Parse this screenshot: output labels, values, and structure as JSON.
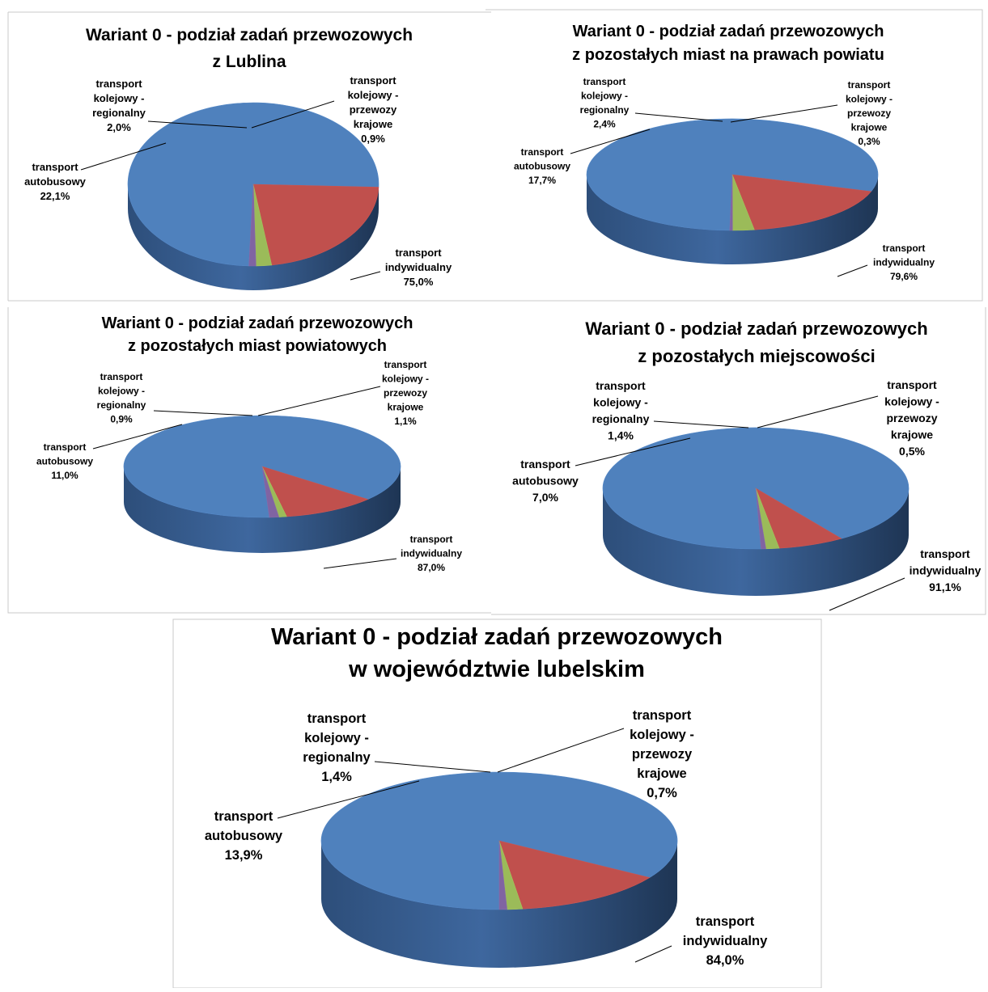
{
  "colors": {
    "transport_indywidualny": "#4f81bd",
    "transport_autobusowy": "#c0504d",
    "transport_kolejowy_regionalny": "#9bbb59",
    "transport_kolejowy_krajowe": "#8064a2"
  },
  "chart_data": [
    {
      "type": "pie",
      "style": "3d",
      "title_lines": [
        "Wariant 0 - podział zadań przewozowych",
        "z Lublina"
      ],
      "slices": [
        {
          "key": "indywidualny",
          "label_lines": [
            "transport",
            "indywidualny"
          ],
          "percent_label": "75,0%",
          "value": 75.0,
          "color": "#4f81bd"
        },
        {
          "key": "autobusowy",
          "label_lines": [
            "transport",
            "autobusowy"
          ],
          "percent_label": "22,1%",
          "value": 22.1,
          "color": "#c0504d"
        },
        {
          "key": "regionalny",
          "label_lines": [
            "transport",
            "kolejowy -",
            "regionalny"
          ],
          "percent_label": "2,0%",
          "value": 2.0,
          "color": "#9bbb59"
        },
        {
          "key": "krajowe",
          "label_lines": [
            "transport",
            "kolejowy -",
            "przewozy",
            "krajowe"
          ],
          "percent_label": "0,9%",
          "value": 0.9,
          "color": "#8064a2"
        }
      ]
    },
    {
      "type": "pie",
      "style": "3d",
      "title_lines": [
        "Wariant 0 - podział zadań przewozowych",
        "z pozostałych miast na prawach powiatu"
      ],
      "slices": [
        {
          "key": "indywidualny",
          "label_lines": [
            "transport",
            "indywidualny"
          ],
          "percent_label": "79,6%",
          "value": 79.6,
          "color": "#4f81bd"
        },
        {
          "key": "autobusowy",
          "label_lines": [
            "transport",
            "autobusowy"
          ],
          "percent_label": "17,7%",
          "value": 17.7,
          "color": "#c0504d"
        },
        {
          "key": "regionalny",
          "label_lines": [
            "transport",
            "kolejowy -",
            "regionalny"
          ],
          "percent_label": "2,4%",
          "value": 2.4,
          "color": "#9bbb59"
        },
        {
          "key": "krajowe",
          "label_lines": [
            "transport",
            "kolejowy -",
            "przewozy",
            "krajowe"
          ],
          "percent_label": "0,3%",
          "value": 0.3,
          "color": "#8064a2"
        }
      ]
    },
    {
      "type": "pie",
      "style": "3d",
      "title_lines": [
        "Wariant 0 - podział zadań przewozowych",
        "z pozostałych miast powiatowych"
      ],
      "slices": [
        {
          "key": "indywidualny",
          "label_lines": [
            "transport",
            "indywidualny"
          ],
          "percent_label": "87,0%",
          "value": 87.0,
          "color": "#4f81bd"
        },
        {
          "key": "autobusowy",
          "label_lines": [
            "transport",
            "autobusowy"
          ],
          "percent_label": "11,0%",
          "value": 11.0,
          "color": "#c0504d"
        },
        {
          "key": "regionalny",
          "label_lines": [
            "transport",
            "kolejowy -",
            "regionalny"
          ],
          "percent_label": "0,9%",
          "value": 0.9,
          "color": "#9bbb59"
        },
        {
          "key": "krajowe",
          "label_lines": [
            "transport",
            "kolejowy -",
            "przewozy",
            "krajowe"
          ],
          "percent_label": "1,1%",
          "value": 1.1,
          "color": "#8064a2"
        }
      ]
    },
    {
      "type": "pie",
      "style": "3d",
      "title_lines": [
        "Wariant 0 - podział zadań przewozowych",
        "z pozostałych miejscowości"
      ],
      "slices": [
        {
          "key": "indywidualny",
          "label_lines": [
            "transport",
            "indywidualny"
          ],
          "percent_label": "91,1%",
          "value": 91.1,
          "color": "#4f81bd"
        },
        {
          "key": "autobusowy",
          "label_lines": [
            "transport",
            "autobusowy"
          ],
          "percent_label": "7,0%",
          "value": 7.0,
          "color": "#c0504d"
        },
        {
          "key": "regionalny",
          "label_lines": [
            "transport",
            "kolejowy -",
            "regionalny"
          ],
          "percent_label": "1,4%",
          "value": 1.4,
          "color": "#9bbb59"
        },
        {
          "key": "krajowe",
          "label_lines": [
            "transport",
            "kolejowy -",
            "przewozy",
            "krajowe"
          ],
          "percent_label": "0,5%",
          "value": 0.5,
          "color": "#8064a2"
        }
      ]
    },
    {
      "type": "pie",
      "style": "3d",
      "title_lines": [
        "Wariant 0 - podział zadań przewozowych",
        "w województwie lubelskim"
      ],
      "slices": [
        {
          "key": "indywidualny",
          "label_lines": [
            "transport",
            "indywidualny"
          ],
          "percent_label": "84,0%",
          "value": 84.0,
          "color": "#4f81bd"
        },
        {
          "key": "autobusowy",
          "label_lines": [
            "transport",
            "autobusowy"
          ],
          "percent_label": "13,9%",
          "value": 13.9,
          "color": "#c0504d"
        },
        {
          "key": "regionalny",
          "label_lines": [
            "transport",
            "kolejowy -",
            "regionalny"
          ],
          "percent_label": "1,4%",
          "value": 1.4,
          "color": "#9bbb59"
        },
        {
          "key": "krajowe",
          "label_lines": [
            "transport",
            "kolejowy -",
            "przewozy",
            "krajowe"
          ],
          "percent_label": "0,7%",
          "value": 0.7,
          "color": "#8064a2"
        }
      ]
    }
  ]
}
